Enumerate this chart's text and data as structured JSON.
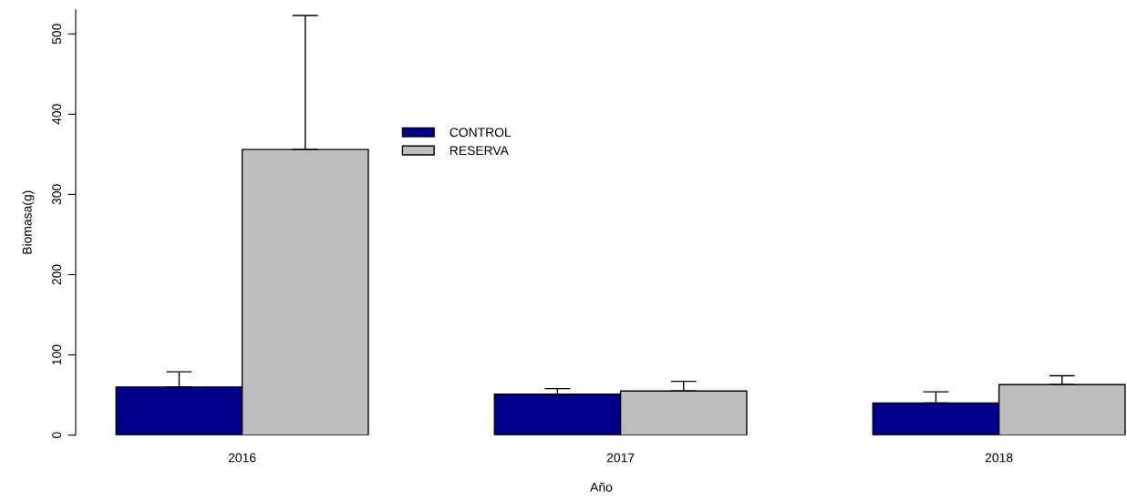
{
  "chart_data": {
    "type": "bar",
    "xlabel": "Año",
    "ylabel": "Biomasa(g)",
    "categories": [
      "2016",
      "2017",
      "2018"
    ],
    "series": [
      {
        "name": "CONTROL",
        "color": "#00008b",
        "values": [
          60,
          51,
          40
        ],
        "errors": [
          [
            60,
            79
          ],
          [
            51,
            58
          ],
          [
            40,
            54
          ]
        ]
      },
      {
        "name": "RESERVA",
        "color": "#bebebe",
        "values": [
          356,
          55,
          63
        ],
        "errors": [
          [
            356,
            523
          ],
          [
            55,
            67
          ],
          [
            63,
            74
          ]
        ]
      }
    ],
    "ylim": [
      0,
      530
    ],
    "yticks": [
      0,
      100,
      200,
      300,
      400,
      500
    ],
    "grid": false,
    "legend": "top left"
  }
}
